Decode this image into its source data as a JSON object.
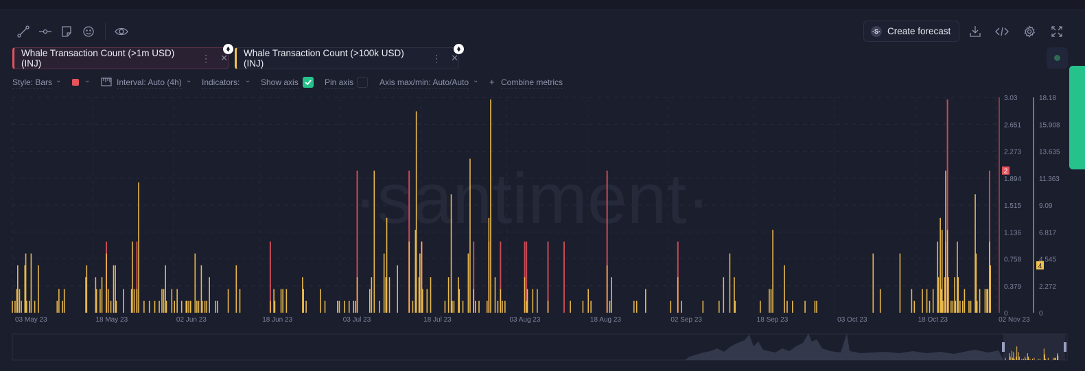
{
  "toolbar": {
    "left_icons": [
      "line-drawing-icon",
      "horizontal-ray-icon",
      "note-icon",
      "emoji-icon",
      "eye-icon"
    ],
    "create_forecast_label": "Create forecast",
    "right_icons": [
      "download-icon",
      "embed-code-icon",
      "settings-gear-icon",
      "fullscreen-icon"
    ]
  },
  "metrics": [
    {
      "label": "Whale Transaction Count (>1m USD) (INJ)",
      "color": "#e5535d",
      "icon": "ethereum-icon"
    },
    {
      "label": "Whale Transaction Count (>100k USD) (INJ)",
      "color": "#f2c14e",
      "icon": "ethereum-icon"
    }
  ],
  "settings": {
    "style_label": "Style: Bars",
    "color_swatch": "#e5535d",
    "interval_label": "Interval: Auto (4h)",
    "indicators_label": "Indicators:",
    "show_axis_label": "Show axis",
    "show_axis_checked": true,
    "pin_axis_label": "Pin axis",
    "pin_axis_checked": false,
    "axis_minmax_label": "Axis max/min: Auto/Auto",
    "combine_label": "Combine metrics"
  },
  "watermark": "·santiment·",
  "chart_data": {
    "type": "bar",
    "x_range": [
      "2023-05-03T00:00",
      "2023-11-02T12:00"
    ],
    "x_ticks": [
      "03 May 23",
      "18 May 23",
      "02 Jun 23",
      "18 Jun 23",
      "03 Jul 23",
      "18 Jul 23",
      "03 Aug 23",
      "18 Aug 23",
      "02 Sep 23",
      "18 Sep 23",
      "03 Oct 23",
      "18 Oct 23",
      "02 Nov 23"
    ],
    "x_tick_dates": [
      "2023-05-03",
      "2023-05-18",
      "2023-06-02",
      "2023-06-18",
      "2023-07-03",
      "2023-07-18",
      "2023-08-03",
      "2023-08-18",
      "2023-09-02",
      "2023-09-18",
      "2023-10-03",
      "2023-10-18",
      "2023-11-02"
    ],
    "grid": true,
    "interval": "4h",
    "series": [
      {
        "name": "Whale Transaction Count (>1m USD) (INJ)",
        "color": "#e5535d",
        "axis_ticks": [
          "3.03",
          "2.651",
          "2.273",
          "1.894",
          "1.515",
          "1.136",
          "0.758",
          "0.379",
          "0"
        ],
        "ylim": [
          0,
          3.03
        ],
        "last_value": "2",
        "points": [
          [
            "2023-05-20T12:00",
            1
          ],
          [
            "2023-05-26T04:00",
            1
          ],
          [
            "2023-06-20T00:00",
            1
          ],
          [
            "2023-07-06T04:00",
            2
          ],
          [
            "2023-07-15T20:00",
            2
          ],
          [
            "2023-07-18T04:00",
            1
          ],
          [
            "2023-07-27T20:00",
            1
          ],
          [
            "2023-07-30T16:00",
            1
          ],
          [
            "2023-08-01T20:00",
            1
          ],
          [
            "2023-08-06T08:00",
            1
          ],
          [
            "2023-08-06T16:00",
            1
          ],
          [
            "2023-08-10T16:00",
            1
          ],
          [
            "2023-08-13T16:00",
            1
          ],
          [
            "2023-08-21T16:00",
            2
          ],
          [
            "2023-09-03T20:00",
            1
          ],
          [
            "2023-10-23T16:00",
            1
          ],
          [
            "2023-10-24T00:00",
            3
          ],
          [
            "2023-10-31T20:00",
            2
          ]
        ]
      },
      {
        "name": "Whale Transaction Count (>100k USD) (INJ)",
        "color": "#f2c14e",
        "axis_ticks": [
          "18.18",
          "15.908",
          "13.635",
          "11.363",
          "9.09",
          "6.817",
          "4.545",
          "2.272",
          "0"
        ],
        "ylim": [
          0,
          18.18
        ],
        "last_value": "4",
        "points": [
          [
            "2023-05-03T00:00",
            1
          ],
          [
            "2023-05-03T12:00",
            1
          ],
          [
            "2023-05-03T20:00",
            2
          ],
          [
            "2023-05-04T00:00",
            4
          ],
          [
            "2023-05-04T08:00",
            2
          ],
          [
            "2023-05-04T16:00",
            1
          ],
          [
            "2023-05-05T08:00",
            4
          ],
          [
            "2023-05-05T12:00",
            5
          ],
          [
            "2023-05-05T16:00",
            1
          ],
          [
            "2023-05-06T04:00",
            1
          ],
          [
            "2023-05-06T12:00",
            5
          ],
          [
            "2023-05-07T04:00",
            1
          ],
          [
            "2023-05-07T20:00",
            4
          ],
          [
            "2023-05-11T08:00",
            1
          ],
          [
            "2023-05-11T16:00",
            2
          ],
          [
            "2023-05-12T08:00",
            1
          ],
          [
            "2023-05-12T16:00",
            2
          ],
          [
            "2023-05-16T16:00",
            3
          ],
          [
            "2023-05-16T20:00",
            4
          ],
          [
            "2023-05-18T12:00",
            3
          ],
          [
            "2023-05-18T16:00",
            2
          ],
          [
            "2023-05-19T08:00",
            2
          ],
          [
            "2023-05-19T16:00",
            3
          ],
          [
            "2023-05-20T12:00",
            5
          ],
          [
            "2023-05-20T20:00",
            2
          ],
          [
            "2023-05-21T08:00",
            1
          ],
          [
            "2023-05-21T20:00",
            4
          ],
          [
            "2023-05-22T04:00",
            4
          ],
          [
            "2023-05-22T08:00",
            1
          ],
          [
            "2023-05-23T16:00",
            2
          ],
          [
            "2023-05-25T04:00",
            2
          ],
          [
            "2023-05-25T08:00",
            6
          ],
          [
            "2023-05-25T16:00",
            2
          ],
          [
            "2023-05-26T04:00",
            2
          ],
          [
            "2023-05-26T12:00",
            11
          ],
          [
            "2023-05-27T12:00",
            1
          ],
          [
            "2023-05-28T12:00",
            1
          ],
          [
            "2023-05-29T12:00",
            1
          ],
          [
            "2023-05-30T08:00",
            1
          ],
          [
            "2023-05-30T20:00",
            2
          ],
          [
            "2023-05-31T04:00",
            2
          ],
          [
            "2023-05-31T12:00",
            4
          ],
          [
            "2023-05-31T16:00",
            1
          ],
          [
            "2023-06-01T16:00",
            2
          ],
          [
            "2023-06-02T04:00",
            1
          ],
          [
            "2023-06-02T16:00",
            2
          ],
          [
            "2023-06-03T12:00",
            1
          ],
          [
            "2023-06-04T08:00",
            1
          ],
          [
            "2023-06-04T12:00",
            1
          ],
          [
            "2023-06-04T20:00",
            1
          ],
          [
            "2023-06-05T04:00",
            1
          ],
          [
            "2023-06-06T00:00",
            5
          ],
          [
            "2023-06-06T08:00",
            1
          ],
          [
            "2023-06-06T16:00",
            1
          ],
          [
            "2023-06-07T04:00",
            4
          ],
          [
            "2023-06-07T08:00",
            1
          ],
          [
            "2023-06-07T20:00",
            1
          ],
          [
            "2023-06-08T04:00",
            1
          ],
          [
            "2023-06-08T16:00",
            3
          ],
          [
            "2023-06-09T20:00",
            1
          ],
          [
            "2023-06-10T04:00",
            1
          ],
          [
            "2023-06-12T04:00",
            2
          ],
          [
            "2023-06-13T16:00",
            4
          ],
          [
            "2023-06-14T08:00",
            2
          ],
          [
            "2023-06-20T00:00",
            1
          ],
          [
            "2023-06-20T16:00",
            2
          ],
          [
            "2023-06-20T20:00",
            1
          ],
          [
            "2023-06-22T00:00",
            2
          ],
          [
            "2023-06-22T08:00",
            2
          ],
          [
            "2023-06-23T00:00",
            2
          ],
          [
            "2023-06-26T00:00",
            3
          ],
          [
            "2023-06-26T04:00",
            2
          ],
          [
            "2023-06-26T16:00",
            1
          ],
          [
            "2023-06-29T08:00",
            2
          ],
          [
            "2023-06-30T04:00",
            1
          ],
          [
            "2023-07-02T12:00",
            1
          ],
          [
            "2023-07-02T20:00",
            1
          ],
          [
            "2023-07-03T20:00",
            1
          ],
          [
            "2023-07-04T16:00",
            1
          ],
          [
            "2023-07-05T12:00",
            1
          ],
          [
            "2023-07-05T20:00",
            1
          ],
          [
            "2023-07-06T04:00",
            3
          ],
          [
            "2023-07-08T12:00",
            2
          ],
          [
            "2023-07-08T20:00",
            3
          ],
          [
            "2023-07-09T08:00",
            12
          ],
          [
            "2023-07-10T08:00",
            1
          ],
          [
            "2023-07-11T04:00",
            5
          ],
          [
            "2023-07-11T12:00",
            3
          ],
          [
            "2023-07-11T16:00",
            8
          ],
          [
            "2023-07-12T04:00",
            3
          ],
          [
            "2023-07-13T16:00",
            4
          ],
          [
            "2023-07-15T20:00",
            6
          ],
          [
            "2023-07-16T12:00",
            1
          ],
          [
            "2023-07-17T00:00",
            7
          ],
          [
            "2023-07-17T04:00",
            17
          ],
          [
            "2023-07-17T16:00",
            3
          ],
          [
            "2023-07-17T20:00",
            5
          ],
          [
            "2023-07-18T04:00",
            6
          ],
          [
            "2023-07-18T08:00",
            2
          ],
          [
            "2023-07-19T04:00",
            2
          ],
          [
            "2023-07-19T20:00",
            3
          ],
          [
            "2023-07-22T12:00",
            1
          ],
          [
            "2023-07-23T04:00",
            3
          ],
          [
            "2023-07-23T16:00",
            10
          ],
          [
            "2023-07-23T20:00",
            1
          ],
          [
            "2023-07-24T04:00",
            1
          ],
          [
            "2023-07-25T00:00",
            3
          ],
          [
            "2023-07-25T04:00",
            2
          ],
          [
            "2023-07-25T20:00",
            1
          ],
          [
            "2023-07-26T20:00",
            5
          ],
          [
            "2023-07-27T04:00",
            13
          ],
          [
            "2023-07-27T20:00",
            2
          ],
          [
            "2023-07-28T04:00",
            1
          ],
          [
            "2023-07-28T20:00",
            1
          ],
          [
            "2023-07-30T08:00",
            1
          ],
          [
            "2023-07-30T16:00",
            8
          ],
          [
            "2023-07-31T00:00",
            18
          ],
          [
            "2023-07-31T20:00",
            3
          ],
          [
            "2023-08-01T08:00",
            1
          ],
          [
            "2023-08-01T20:00",
            2
          ],
          [
            "2023-08-02T04:00",
            1
          ],
          [
            "2023-08-02T16:00",
            1
          ],
          [
            "2023-08-06T08:00",
            3
          ],
          [
            "2023-08-06T16:00",
            1
          ],
          [
            "2023-08-06T20:00",
            2
          ],
          [
            "2023-08-07T20:00",
            2
          ],
          [
            "2023-08-08T16:00",
            2
          ],
          [
            "2023-08-10T16:00",
            1
          ],
          [
            "2023-08-14T20:00",
            1
          ],
          [
            "2023-08-17T04:00",
            1
          ],
          [
            "2023-08-18T04:00",
            2
          ],
          [
            "2023-08-18T16:00",
            1
          ],
          [
            "2023-08-21T16:00",
            4
          ],
          [
            "2023-08-22T04:00",
            1
          ],
          [
            "2023-08-22T12:00",
            3
          ],
          [
            "2023-08-26T16:00",
            1
          ],
          [
            "2023-08-27T04:00",
            1
          ],
          [
            "2023-08-28T20:00",
            2
          ],
          [
            "2023-09-02T12:00",
            1
          ],
          [
            "2023-09-03T20:00",
            3
          ],
          [
            "2023-09-04T12:00",
            1
          ],
          [
            "2023-09-08T12:00",
            1
          ],
          [
            "2023-09-11T12:00",
            1
          ],
          [
            "2023-09-12T08:00",
            3
          ],
          [
            "2023-09-13T12:00",
            5
          ],
          [
            "2023-09-14T08:00",
            3
          ],
          [
            "2023-09-14T12:00",
            1
          ],
          [
            "2023-09-19T04:00",
            1
          ],
          [
            "2023-09-20T20:00",
            2
          ],
          [
            "2023-09-21T04:00",
            2
          ],
          [
            "2023-09-21T12:00",
            7
          ],
          [
            "2023-09-23T16:00",
            4
          ],
          [
            "2023-09-24T04:00",
            1
          ],
          [
            "2023-09-25T04:00",
            1
          ],
          [
            "2023-09-27T12:00",
            1
          ],
          [
            "2023-09-29T08:00",
            1
          ],
          [
            "2023-09-29T16:00",
            1
          ],
          [
            "2023-10-10T04:00",
            5
          ],
          [
            "2023-10-11T12:00",
            2
          ],
          [
            "2023-10-15T04:00",
            5
          ],
          [
            "2023-10-17T08:00",
            2
          ],
          [
            "2023-10-17T20:00",
            1
          ],
          [
            "2023-10-19T08:00",
            2
          ],
          [
            "2023-10-20T04:00",
            2
          ],
          [
            "2023-10-20T16:00",
            1
          ],
          [
            "2023-10-21T08:00",
            2
          ],
          [
            "2023-10-22T04:00",
            6
          ],
          [
            "2023-10-22T08:00",
            3
          ],
          [
            "2023-10-22T16:00",
            8
          ],
          [
            "2023-10-22T20:00",
            2
          ],
          [
            "2023-10-23T00:00",
            7
          ],
          [
            "2023-10-23T04:00",
            1
          ],
          [
            "2023-10-23T12:00",
            3
          ],
          [
            "2023-10-23T16:00",
            12
          ],
          [
            "2023-10-24T00:00",
            7
          ],
          [
            "2023-10-24T04:00",
            3
          ],
          [
            "2023-10-24T16:00",
            1
          ],
          [
            "2023-10-25T00:00",
            1
          ],
          [
            "2023-10-25T08:00",
            3
          ],
          [
            "2023-10-25T12:00",
            1
          ],
          [
            "2023-10-25T20:00",
            6
          ],
          [
            "2023-10-26T00:00",
            3
          ],
          [
            "2023-10-26T08:00",
            1
          ],
          [
            "2023-10-26T20:00",
            1
          ],
          [
            "2023-10-27T04:00",
            2
          ],
          [
            "2023-10-28T00:00",
            1
          ],
          [
            "2023-10-28T08:00",
            1
          ],
          [
            "2023-10-29T04:00",
            10
          ],
          [
            "2023-10-29T08:00",
            5
          ],
          [
            "2023-10-29T12:00",
            1
          ],
          [
            "2023-10-30T00:00",
            2
          ],
          [
            "2023-10-31T00:00",
            2
          ],
          [
            "2023-10-31T08:00",
            2
          ],
          [
            "2023-10-31T12:00",
            2
          ],
          [
            "2023-10-31T20:00",
            6
          ],
          [
            "2023-11-01T00:00",
            4
          ]
        ]
      }
    ]
  }
}
